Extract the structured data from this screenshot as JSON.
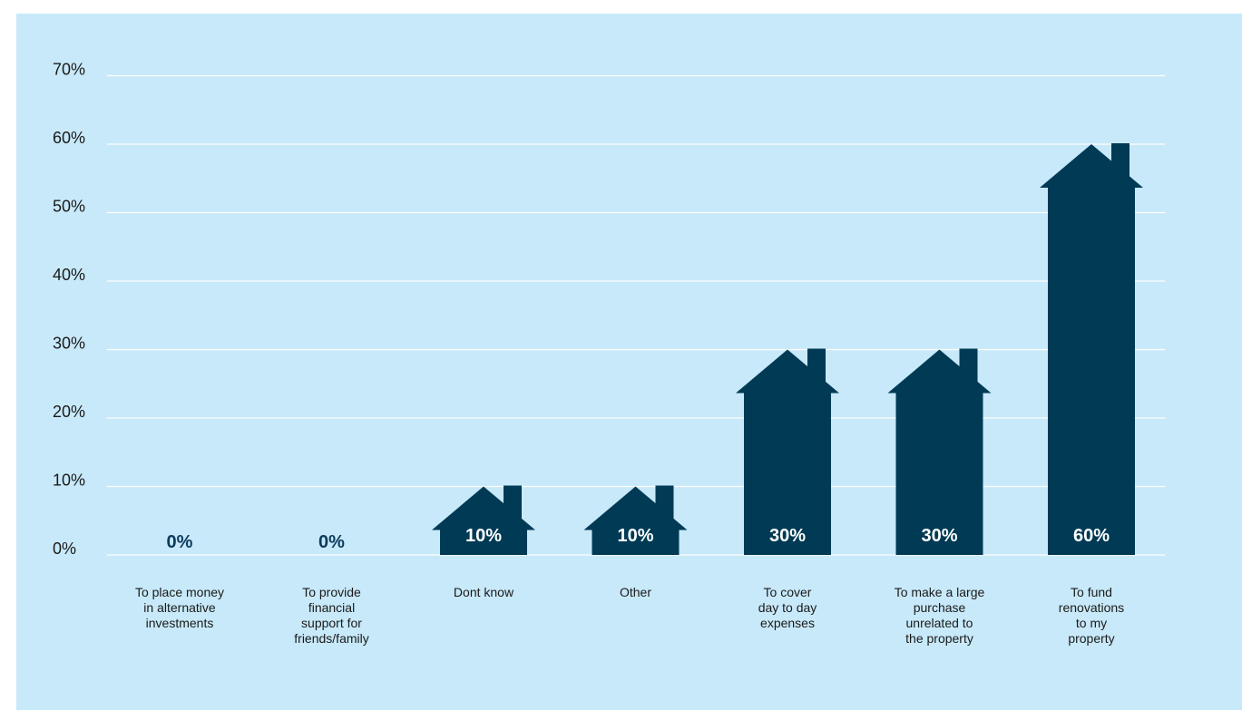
{
  "chart_data": {
    "type": "bar",
    "categories": [
      "To place money in alternative investments",
      "To provide financial support for friends/family",
      "Dont know",
      "Other",
      "To cover day to day expenses",
      "To make a large purchase unrelated to the property",
      "To fund renovations to my property"
    ],
    "category_lines": [
      [
        "To place money",
        "in alternative",
        "investments"
      ],
      [
        "To provide",
        "financial",
        "support for",
        "friends/family"
      ],
      [
        "Dont know"
      ],
      [
        "Other"
      ],
      [
        "To cover",
        "day to day",
        "expenses"
      ],
      [
        "To make a large",
        "purchase",
        "unrelated to",
        "the property"
      ],
      [
        "To fund",
        "renovations",
        "to my",
        "property"
      ]
    ],
    "values": [
      0,
      0,
      10,
      10,
      30,
      30,
      60
    ],
    "value_labels": [
      "0%",
      "0%",
      "10%",
      "10%",
      "30%",
      "30%",
      "60%"
    ],
    "yticks": [
      0,
      10,
      20,
      30,
      40,
      50,
      60,
      70
    ],
    "ytick_labels": [
      "0%",
      "10%",
      "20%",
      "30%",
      "40%",
      "50%",
      "60%",
      "70%"
    ],
    "ylim": [
      0,
      70
    ],
    "grid": true,
    "mark_shape": "house",
    "bar_color": "#003a55",
    "background_color": "#c8e9f9"
  }
}
